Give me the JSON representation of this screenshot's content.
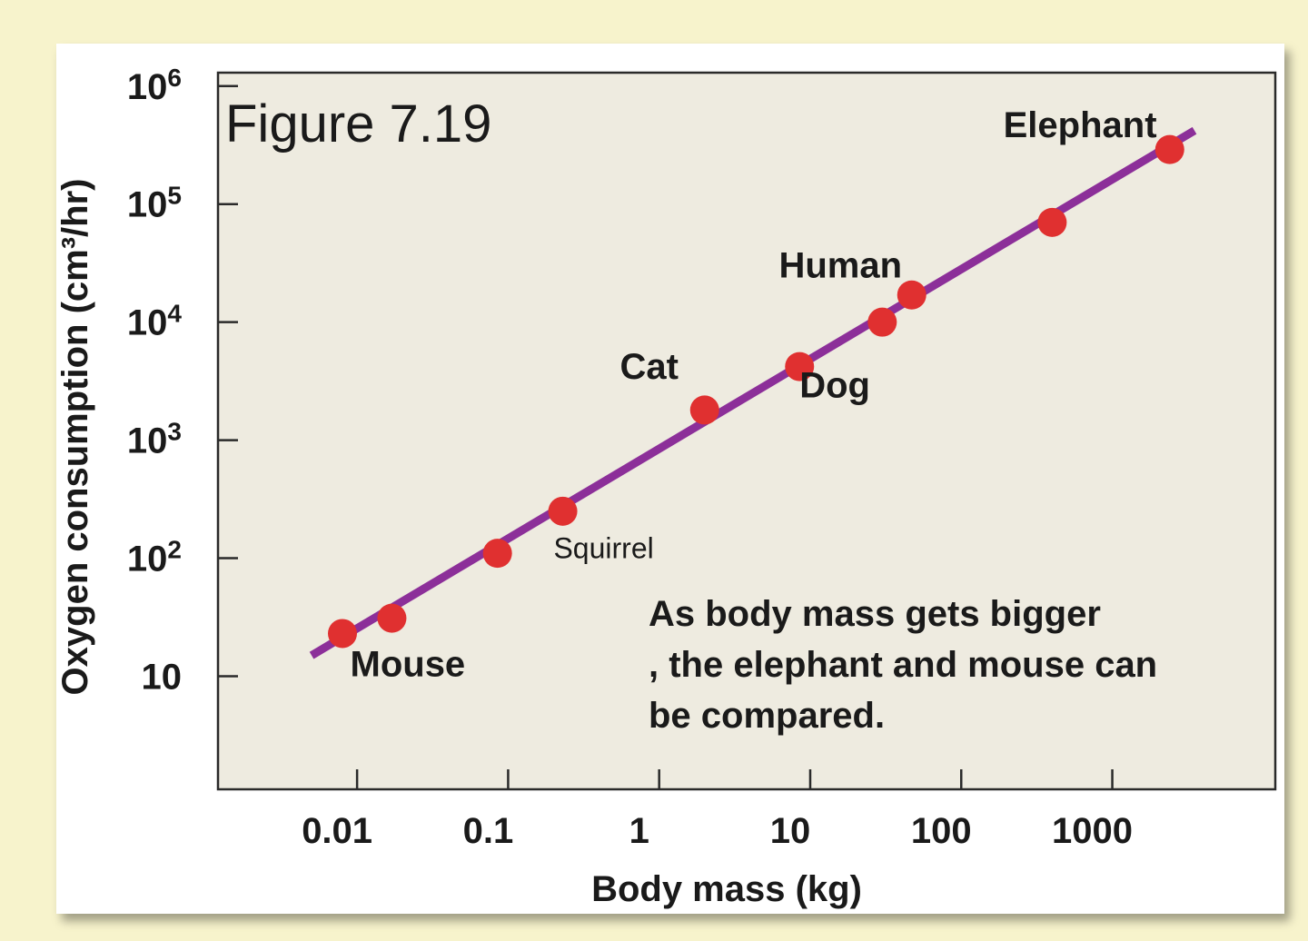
{
  "chart_data": {
    "type": "scatter",
    "title": "Figure 7.19",
    "xlabel": "Body mass (kg)",
    "ylabel": "Oxygen consumption (cm³/hr)",
    "x_scale": "log",
    "y_scale": "log",
    "xlim": [
      0.0012,
      12000
    ],
    "ylim": [
      1.1,
      1300000
    ],
    "x_ticks": [
      {
        "value": 0.01,
        "label": "0.01"
      },
      {
        "value": 0.1,
        "label": "0.1"
      },
      {
        "value": 1,
        "label": "1"
      },
      {
        "value": 10,
        "label": "10"
      },
      {
        "value": 100,
        "label": "100"
      },
      {
        "value": 1000,
        "label": "1000"
      }
    ],
    "y_ticks": [
      {
        "value": 10,
        "base": "10",
        "exp": ""
      },
      {
        "value": 100,
        "base": "10",
        "exp": "2"
      },
      {
        "value": 1000,
        "base": "10",
        "exp": "3"
      },
      {
        "value": 10000,
        "base": "10",
        "exp": "4"
      },
      {
        "value": 100000,
        "base": "10",
        "exp": "5"
      },
      {
        "value": 1000000,
        "base": "10",
        "exp": "6"
      }
    ],
    "points": [
      {
        "x": 0.008,
        "y": 23
      },
      {
        "x": 0.017,
        "y": 31
      },
      {
        "x": 0.085,
        "y": 110
      },
      {
        "x": 0.23,
        "y": 250
      },
      {
        "x": 2.0,
        "y": 1800
      },
      {
        "x": 8.5,
        "y": 4200
      },
      {
        "x": 30,
        "y": 10000
      },
      {
        "x": 47,
        "y": 17000
      },
      {
        "x": 400,
        "y": 70000
      },
      {
        "x": 2400,
        "y": 290000
      }
    ],
    "point_labels": [
      {
        "text": "Mouse",
        "x": 0.009,
        "y": 10,
        "size": "large"
      },
      {
        "text": "Squirrel",
        "x": 0.2,
        "y": 100,
        "size": "small"
      },
      {
        "text": "Cat",
        "x": 0.55,
        "y": 3300,
        "size": "large"
      },
      {
        "text": "Dog",
        "x": 8.5,
        "y": 2300,
        "size": "large"
      },
      {
        "text": "Human",
        "x": 6.2,
        "y": 24000,
        "size": "large"
      },
      {
        "text": "Elephant",
        "x": 190,
        "y": 370000,
        "size": "large"
      }
    ],
    "trend_line": {
      "x": [
        0.005,
        3500
      ],
      "y": [
        15,
        420000
      ]
    },
    "annotation": [
      "As body mass gets bigger",
      ", the elephant and mouse can",
      "be compared."
    ],
    "colors": {
      "point": "#e03030",
      "line": "#8c2f99",
      "plot_bg": "#eeebe0",
      "page_bg": "#f7f3cc"
    },
    "grid": false
  }
}
